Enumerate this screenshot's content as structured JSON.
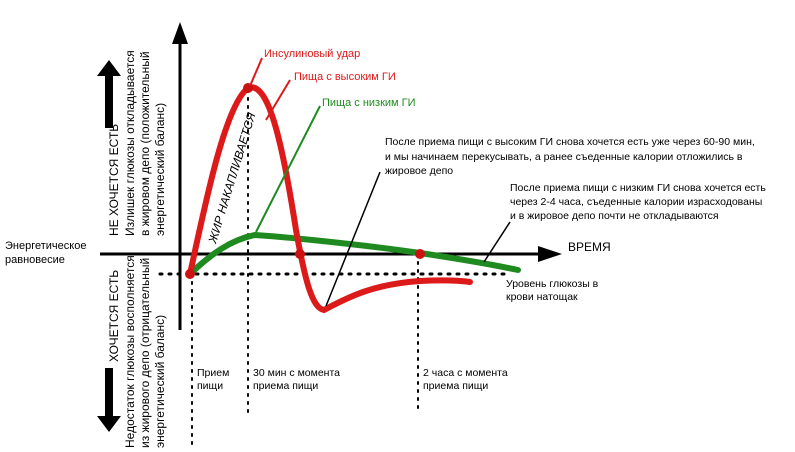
{
  "labels": {
    "equilibrium": [
      "Энергетическое",
      "равновесие"
    ],
    "time_axis": "ВРЕМЯ",
    "want_eat": "НЕ  ХОЧЕТСЯ  ЕСТЬ",
    "not_want_eat": "ХОЧЕТСЯ  ЕСТЬ",
    "excess_note": [
      "Излишек глюкозы откладывается",
      "в жировом депо (положительный",
      "энергетический баланс)"
    ],
    "deficit_note": [
      "Недостаток глюкозы восполняется",
      "из жирового депо (отрицательный",
      "энергетический баланс)"
    ],
    "fat_accumulates": "ЖИР НАКАПЛИВАЕТСЯ",
    "insulin_spike": "Инсулиновый удар",
    "high_gi_food": "Пища с высоким ГИ",
    "low_gi_food": "Пища с низким ГИ",
    "high_gi_comment": [
      "После приема пищи с высоким ГИ снова хочется есть уже через 60-90 мин,",
      "и мы начинаем перекусывать, а ранее съеденные калории отложились в",
      "жировое депо"
    ],
    "low_gi_comment": [
      "После приема пищи с низким ГИ снова хочется есть",
      "через 2-4 часа, съеденные калории израсходованы",
      "и в жировое депо почти не откладываются"
    ],
    "fasting_level": [
      "Уровень глюкозы в",
      "крови натощак"
    ],
    "meal": [
      "Прием",
      "пищи"
    ],
    "thirty_min": [
      "30 мин с момента",
      "приема пищи"
    ],
    "two_hours": [
      "2 часа с момента",
      "приема пищи"
    ]
  },
  "colors": {
    "high_gi": "#dd1a1a",
    "low_gi": "#1f8a1f",
    "marker": "#cc1111",
    "axis": "#000000"
  }
}
